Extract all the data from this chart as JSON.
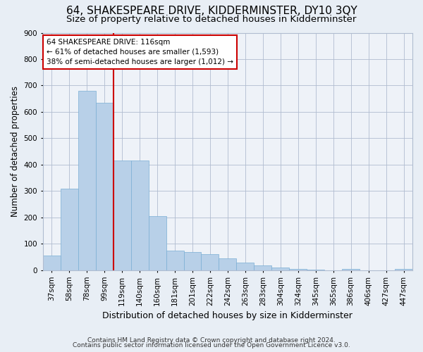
{
  "title": "64, SHAKESPEARE DRIVE, KIDDERMINSTER, DY10 3QY",
  "subtitle": "Size of property relative to detached houses in Kidderminster",
  "xlabel": "Distribution of detached houses by size in Kidderminster",
  "ylabel": "Number of detached properties",
  "footnote1": "Contains HM Land Registry data © Crown copyright and database right 2024.",
  "footnote2": "Contains public sector information licensed under the Open Government Licence v3.0.",
  "categories": [
    "37sqm",
    "58sqm",
    "78sqm",
    "99sqm",
    "119sqm",
    "140sqm",
    "160sqm",
    "181sqm",
    "201sqm",
    "222sqm",
    "242sqm",
    "263sqm",
    "283sqm",
    "304sqm",
    "324sqm",
    "345sqm",
    "365sqm",
    "386sqm",
    "406sqm",
    "427sqm",
    "447sqm"
  ],
  "values": [
    55,
    310,
    680,
    635,
    415,
    415,
    205,
    75,
    70,
    60,
    45,
    30,
    18,
    10,
    5,
    2,
    1,
    5,
    1,
    1,
    5
  ],
  "bar_color": "#b8d0e8",
  "bar_edge_color": "#7aaed4",
  "highlight_color_edge": "#cc0000",
  "annotation_text": "64 SHAKESPEARE DRIVE: 116sqm\n← 61% of detached houses are smaller (1,593)\n38% of semi-detached houses are larger (1,012) →",
  "annotation_box_edge": "#cc0000",
  "vline_index": 3,
  "ylim": [
    0,
    900
  ],
  "yticks": [
    0,
    100,
    200,
    300,
    400,
    500,
    600,
    700,
    800,
    900
  ],
  "title_fontsize": 11,
  "subtitle_fontsize": 9.5,
  "xlabel_fontsize": 9,
  "ylabel_fontsize": 8.5,
  "tick_fontsize": 7.5,
  "annotation_fontsize": 7.5,
  "footnote_fontsize": 6.5,
  "bg_color": "#e8eef5",
  "plot_bg_color": "#eef2f8"
}
